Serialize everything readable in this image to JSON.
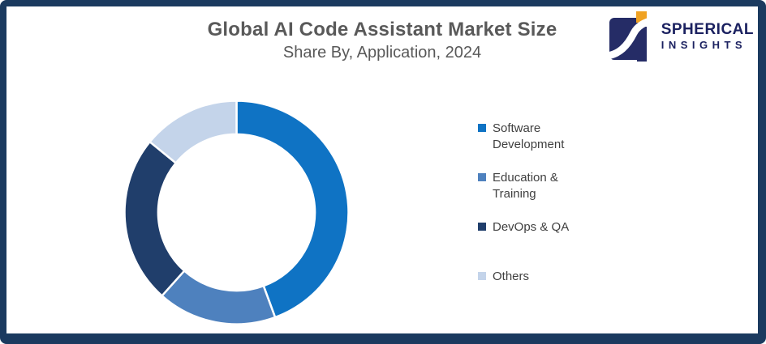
{
  "window": {
    "background": "#FFFFFF",
    "frame_color": "#1B3A5F"
  },
  "header": {
    "title": "Global AI Code Assistant Market Size",
    "subtitle": "Share By, Application, 2024",
    "text_color": "#595959"
  },
  "logo": {
    "line1": "SPHERICAL",
    "line2": "INSIGHTS",
    "text_color": "#1B2160",
    "mark_navy": "#252C66",
    "mark_orange": "#F0A222"
  },
  "chart_data": {
    "type": "pie",
    "variant": "donut",
    "title": "Global AI Code Assistant Market Size",
    "subtitle": "Share By, Application, 2024",
    "start_angle_deg": 0,
    "direction": "clockwise",
    "inner_radius_ratio": 0.7,
    "legend_position": "right",
    "values_are_estimated_percent_share": true,
    "slices": [
      {
        "label": "Software Development",
        "value": 44.4,
        "color": "#0F73C4"
      },
      {
        "label": "Education & Training",
        "value": 17.2,
        "color": "#4E81BE"
      },
      {
        "label": "DevOps & QA",
        "value": 24.3,
        "color": "#203E6B"
      },
      {
        "label": "Others",
        "value": 14.1,
        "color": "#C4D4EA"
      }
    ],
    "separator_color": "#FFFFFF",
    "legend_text_color": "#404040"
  }
}
